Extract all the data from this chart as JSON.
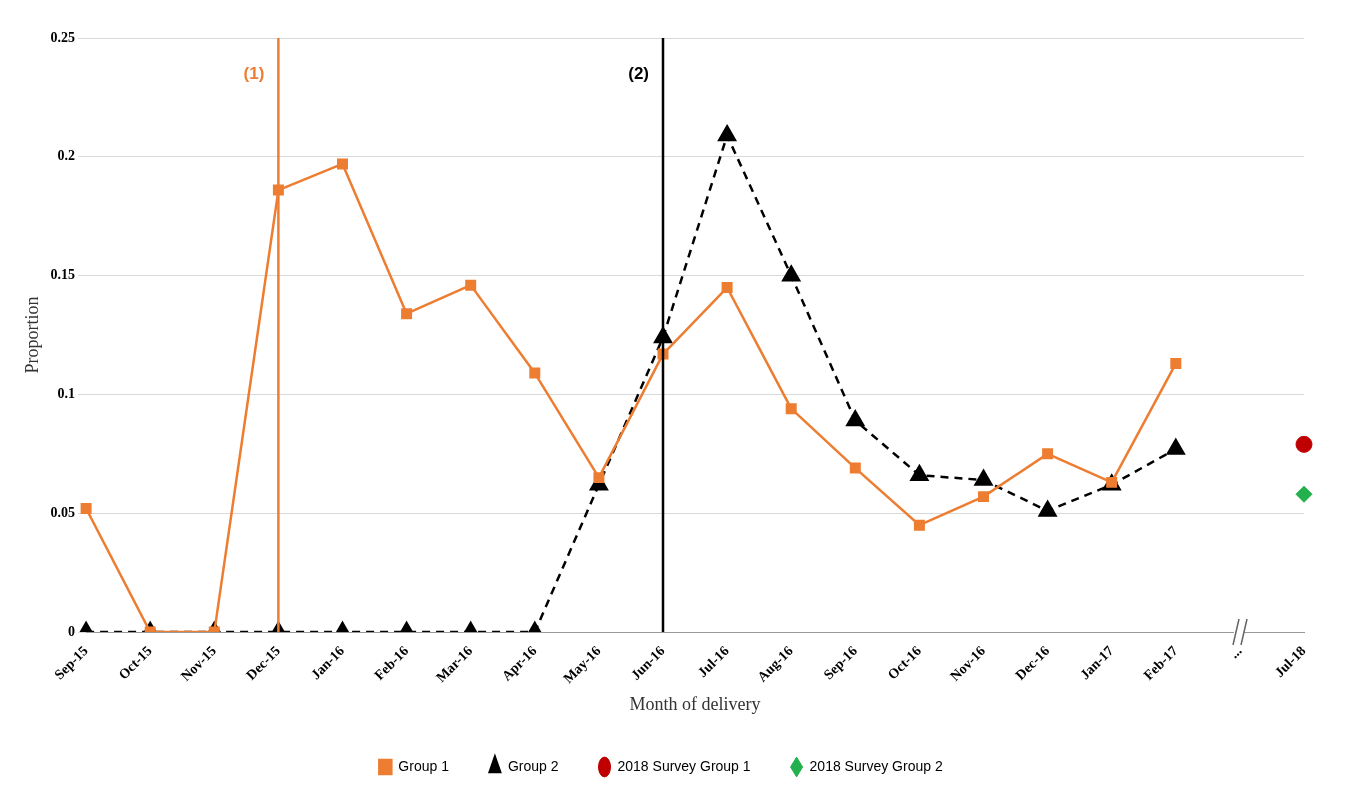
{
  "chart_data": {
    "type": "line",
    "xlabel": "Month of delivery",
    "ylabel": "Proportion",
    "categories": [
      "Sep-15",
      "Oct-15",
      "Nov-15",
      "Dec-15",
      "Jan-16",
      "Feb-16",
      "Mar-16",
      "Apr-16",
      "May-16",
      "Jun-16",
      "Jul-16",
      "Aug-16",
      "Sep-16",
      "Oct-16",
      "Nov-16",
      "Dec-16",
      "Jan-17",
      "Feb-17",
      "...",
      "Jul-18"
    ],
    "series": [
      {
        "name": "Group 1",
        "color": "#ed7d31",
        "marker": "square",
        "line_style": "solid",
        "values": [
          0.052,
          0,
          0,
          0.186,
          0.197,
          0.134,
          0.146,
          0.109,
          0.065,
          0.117,
          0.145,
          0.094,
          0.069,
          0.045,
          0.057,
          0.075,
          0.063,
          0.113,
          null,
          null
        ]
      },
      {
        "name": "Group 2",
        "color": "#000000",
        "marker": "triangle",
        "line_style": "dashed",
        "values": [
          0,
          0,
          0,
          0,
          0,
          0,
          0,
          0,
          0.062,
          0.124,
          0.209,
          0.15,
          0.089,
          0.066,
          0.064,
          0.051,
          0.062,
          0.077,
          null,
          null
        ]
      },
      {
        "name": "2018 Survey Group 1",
        "type": "scatter",
        "color": "#c00000",
        "marker": "circle",
        "x": [
          "Jul-18"
        ],
        "values": [
          0.079
        ]
      },
      {
        "name": "2018 Survey Group 2",
        "type": "scatter",
        "color": "#22b14c",
        "marker": "diamond",
        "x": [
          "Jul-18"
        ],
        "values": [
          0.058
        ]
      }
    ],
    "ref_lines": [
      {
        "axis": "x",
        "value": "Dec-15",
        "label": "(1)",
        "color": "#ed7d31"
      },
      {
        "axis": "x",
        "value": "Jun-16",
        "label": "(2)",
        "color": "#000000"
      }
    ],
    "ylim": [
      0,
      0.25
    ],
    "yticks": [
      0,
      0.05,
      0.1,
      0.15,
      0.2,
      0.25
    ],
    "grid": "y",
    "legend": "bottom"
  }
}
